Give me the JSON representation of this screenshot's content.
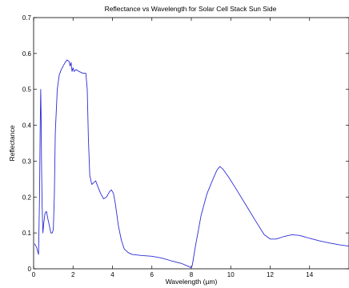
{
  "chart_data": {
    "type": "line",
    "title": "Reflectance vs Wavelength for Solar Cell Stack Sun Side",
    "xlabel": "Wavelength (µm)",
    "ylabel": "Reflectance",
    "xlim": [
      0,
      16
    ],
    "ylim": [
      0,
      0.7
    ],
    "xticks": [
      "0",
      "2",
      "4",
      "6",
      "8",
      "10",
      "12",
      "14"
    ],
    "yticks": [
      "0",
      "0.1",
      "0.2",
      "0.3",
      "0.4",
      "0.5",
      "0.6",
      "0.7"
    ],
    "grid": false,
    "series": [
      {
        "color": "#2b2bd6",
        "points": [
          [
            0.05,
            0.07
          ],
          [
            0.15,
            0.06
          ],
          [
            0.25,
            0.04
          ],
          [
            0.3,
            0.2
          ],
          [
            0.33,
            0.38
          ],
          [
            0.36,
            0.5
          ],
          [
            0.38,
            0.43
          ],
          [
            0.4,
            0.3
          ],
          [
            0.43,
            0.18
          ],
          [
            0.47,
            0.1
          ],
          [
            0.52,
            0.13
          ],
          [
            0.58,
            0.155
          ],
          [
            0.65,
            0.16
          ],
          [
            0.72,
            0.14
          ],
          [
            0.8,
            0.12
          ],
          [
            0.87,
            0.1
          ],
          [
            0.95,
            0.1
          ],
          [
            1.0,
            0.11
          ],
          [
            1.05,
            0.2
          ],
          [
            1.1,
            0.38
          ],
          [
            1.2,
            0.5
          ],
          [
            1.3,
            0.54
          ],
          [
            1.4,
            0.555
          ],
          [
            1.5,
            0.565
          ],
          [
            1.6,
            0.575
          ],
          [
            1.7,
            0.582
          ],
          [
            1.8,
            0.578
          ],
          [
            1.85,
            0.565
          ],
          [
            1.9,
            0.575
          ],
          [
            1.95,
            0.55
          ],
          [
            2.0,
            0.56
          ],
          [
            2.05,
            0.55
          ],
          [
            2.15,
            0.555
          ],
          [
            2.3,
            0.55
          ],
          [
            2.5,
            0.545
          ],
          [
            2.65,
            0.545
          ],
          [
            2.72,
            0.5
          ],
          [
            2.78,
            0.36
          ],
          [
            2.85,
            0.26
          ],
          [
            2.95,
            0.235
          ],
          [
            3.05,
            0.24
          ],
          [
            3.15,
            0.245
          ],
          [
            3.25,
            0.23
          ],
          [
            3.4,
            0.21
          ],
          [
            3.55,
            0.195
          ],
          [
            3.7,
            0.2
          ],
          [
            3.85,
            0.215
          ],
          [
            3.95,
            0.22
          ],
          [
            4.05,
            0.21
          ],
          [
            4.15,
            0.18
          ],
          [
            4.3,
            0.12
          ],
          [
            4.45,
            0.08
          ],
          [
            4.6,
            0.055
          ],
          [
            4.8,
            0.045
          ],
          [
            5.0,
            0.04
          ],
          [
            5.5,
            0.037
          ],
          [
            6.0,
            0.035
          ],
          [
            6.5,
            0.03
          ],
          [
            7.0,
            0.022
          ],
          [
            7.5,
            0.015
          ],
          [
            7.8,
            0.008
          ],
          [
            8.0,
            0.003
          ],
          [
            8.05,
            0.01
          ],
          [
            8.2,
            0.06
          ],
          [
            8.5,
            0.15
          ],
          [
            8.8,
            0.21
          ],
          [
            9.1,
            0.25
          ],
          [
            9.3,
            0.275
          ],
          [
            9.45,
            0.285
          ],
          [
            9.6,
            0.278
          ],
          [
            9.9,
            0.255
          ],
          [
            10.3,
            0.22
          ],
          [
            10.8,
            0.175
          ],
          [
            11.3,
            0.13
          ],
          [
            11.7,
            0.095
          ],
          [
            12.0,
            0.083
          ],
          [
            12.3,
            0.083
          ],
          [
            12.7,
            0.09
          ],
          [
            13.1,
            0.095
          ],
          [
            13.5,
            0.093
          ],
          [
            14.0,
            0.085
          ],
          [
            14.5,
            0.078
          ],
          [
            15.0,
            0.072
          ],
          [
            15.5,
            0.067
          ],
          [
            16.0,
            0.063
          ]
        ]
      }
    ]
  }
}
